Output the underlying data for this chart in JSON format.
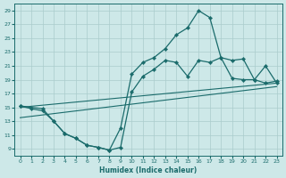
{
  "xlabel": "Humidex (Indice chaleur)",
  "bg_color": "#cde8e8",
  "grid_color": "#aacccc",
  "line_color": "#1a6b6b",
  "xlim": [
    -0.5,
    23.5
  ],
  "ylim": [
    8.0,
    30.0
  ],
  "xticks": [
    0,
    1,
    2,
    3,
    4,
    5,
    6,
    7,
    8,
    9,
    10,
    11,
    12,
    13,
    14,
    15,
    16,
    17,
    18,
    19,
    20,
    21,
    22,
    23
  ],
  "yticks": [
    9,
    11,
    13,
    15,
    17,
    19,
    21,
    23,
    25,
    27,
    29
  ],
  "series_upper_x": [
    0,
    2,
    3,
    4,
    5,
    6,
    7,
    8,
    9,
    10,
    11,
    12,
    13,
    14,
    15,
    16,
    17,
    18,
    19,
    20,
    21,
    22,
    23
  ],
  "series_upper_y": [
    15.2,
    14.8,
    13.0,
    11.2,
    10.5,
    9.5,
    9.2,
    8.8,
    12.0,
    19.8,
    21.5,
    22.2,
    23.5,
    25.5,
    26.5,
    29.0,
    28.0,
    22.2,
    21.8,
    22.0,
    19.0,
    21.0,
    18.5
  ],
  "series_lower_x": [
    0,
    1,
    2,
    3,
    4,
    5,
    6,
    7,
    8,
    9,
    10,
    11,
    12,
    13,
    14,
    15,
    16,
    17,
    18,
    19,
    20,
    21,
    22,
    23
  ],
  "series_lower_y": [
    15.2,
    14.8,
    14.5,
    13.0,
    11.2,
    10.5,
    9.5,
    9.2,
    8.8,
    9.2,
    17.2,
    19.5,
    20.5,
    21.8,
    21.5,
    19.5,
    21.8,
    21.5,
    22.2,
    19.2,
    19.0,
    19.0,
    18.5,
    18.8
  ],
  "line1_x": [
    0,
    23
  ],
  "line1_y": [
    15.0,
    18.5
  ],
  "line2_x": [
    0,
    23
  ],
  "line2_y": [
    13.5,
    18.0
  ]
}
